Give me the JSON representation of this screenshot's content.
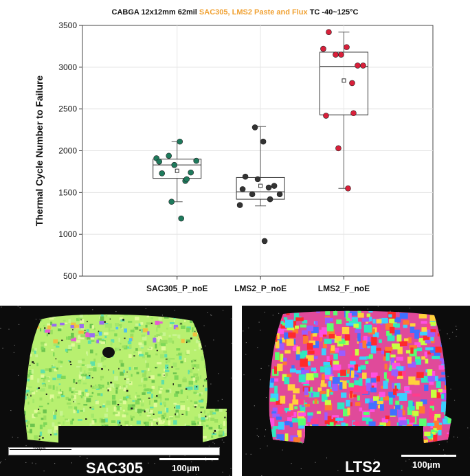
{
  "chart_data": {
    "type": "box",
    "title_parts": [
      {
        "text": "CABGA 12x12mm 62mil ",
        "color": "#111111"
      },
      {
        "text": "SAC305, LMS2 Paste and Flux",
        "color": "#f0a030"
      },
      {
        "text": "  TC -40~125°C",
        "color": "#111111"
      }
    ],
    "ylabel": "Thermal Cycle Number to Failure",
    "ylim": [
      500,
      3500
    ],
    "yticks": [
      "500",
      "1000",
      "1500",
      "2000",
      "2500",
      "3000",
      "3500"
    ],
    "grid": true,
    "categories": [
      "SAC305_P_noE",
      "LMS2_P_noE",
      "LMS2_F_noE"
    ],
    "series": [
      {
        "color": "#1e7a5c",
        "box": {
          "q1": 1670,
          "median": 1830,
          "q3": 1900,
          "mean": 1760,
          "whisker_low": 1390,
          "whisker_high": 2110
        },
        "points": [
          1910,
          1730,
          1940,
          1830,
          2110,
          1640,
          1740,
          1880,
          1870,
          1660,
          1390,
          1190
        ]
      },
      {
        "color": "#333333",
        "box": {
          "q1": 1420,
          "median": 1510,
          "q3": 1680,
          "mean": 1580,
          "whisker_low": 1340,
          "whisker_high": 2290
        },
        "points": [
          1350,
          1690,
          1480,
          1660,
          2110,
          1560,
          1580,
          1480,
          1540,
          1420,
          2280,
          920
        ]
      },
      {
        "color": "#d8203a",
        "box": {
          "q1": 2430,
          "median": 3010,
          "q3": 3180,
          "mean": 2840,
          "whisker_low": 1550,
          "whisker_high": 3420
        },
        "points": [
          3220,
          3420,
          3150,
          3150,
          3240,
          2810,
          3020,
          3020,
          2420,
          2450,
          2030,
          1550
        ]
      }
    ]
  },
  "images": [
    {
      "label": "SAC305",
      "scale_label": "100µm",
      "inner_scale_label": "100µm"
    },
    {
      "label": "LTS2",
      "scale_label": "100µm"
    }
  ]
}
